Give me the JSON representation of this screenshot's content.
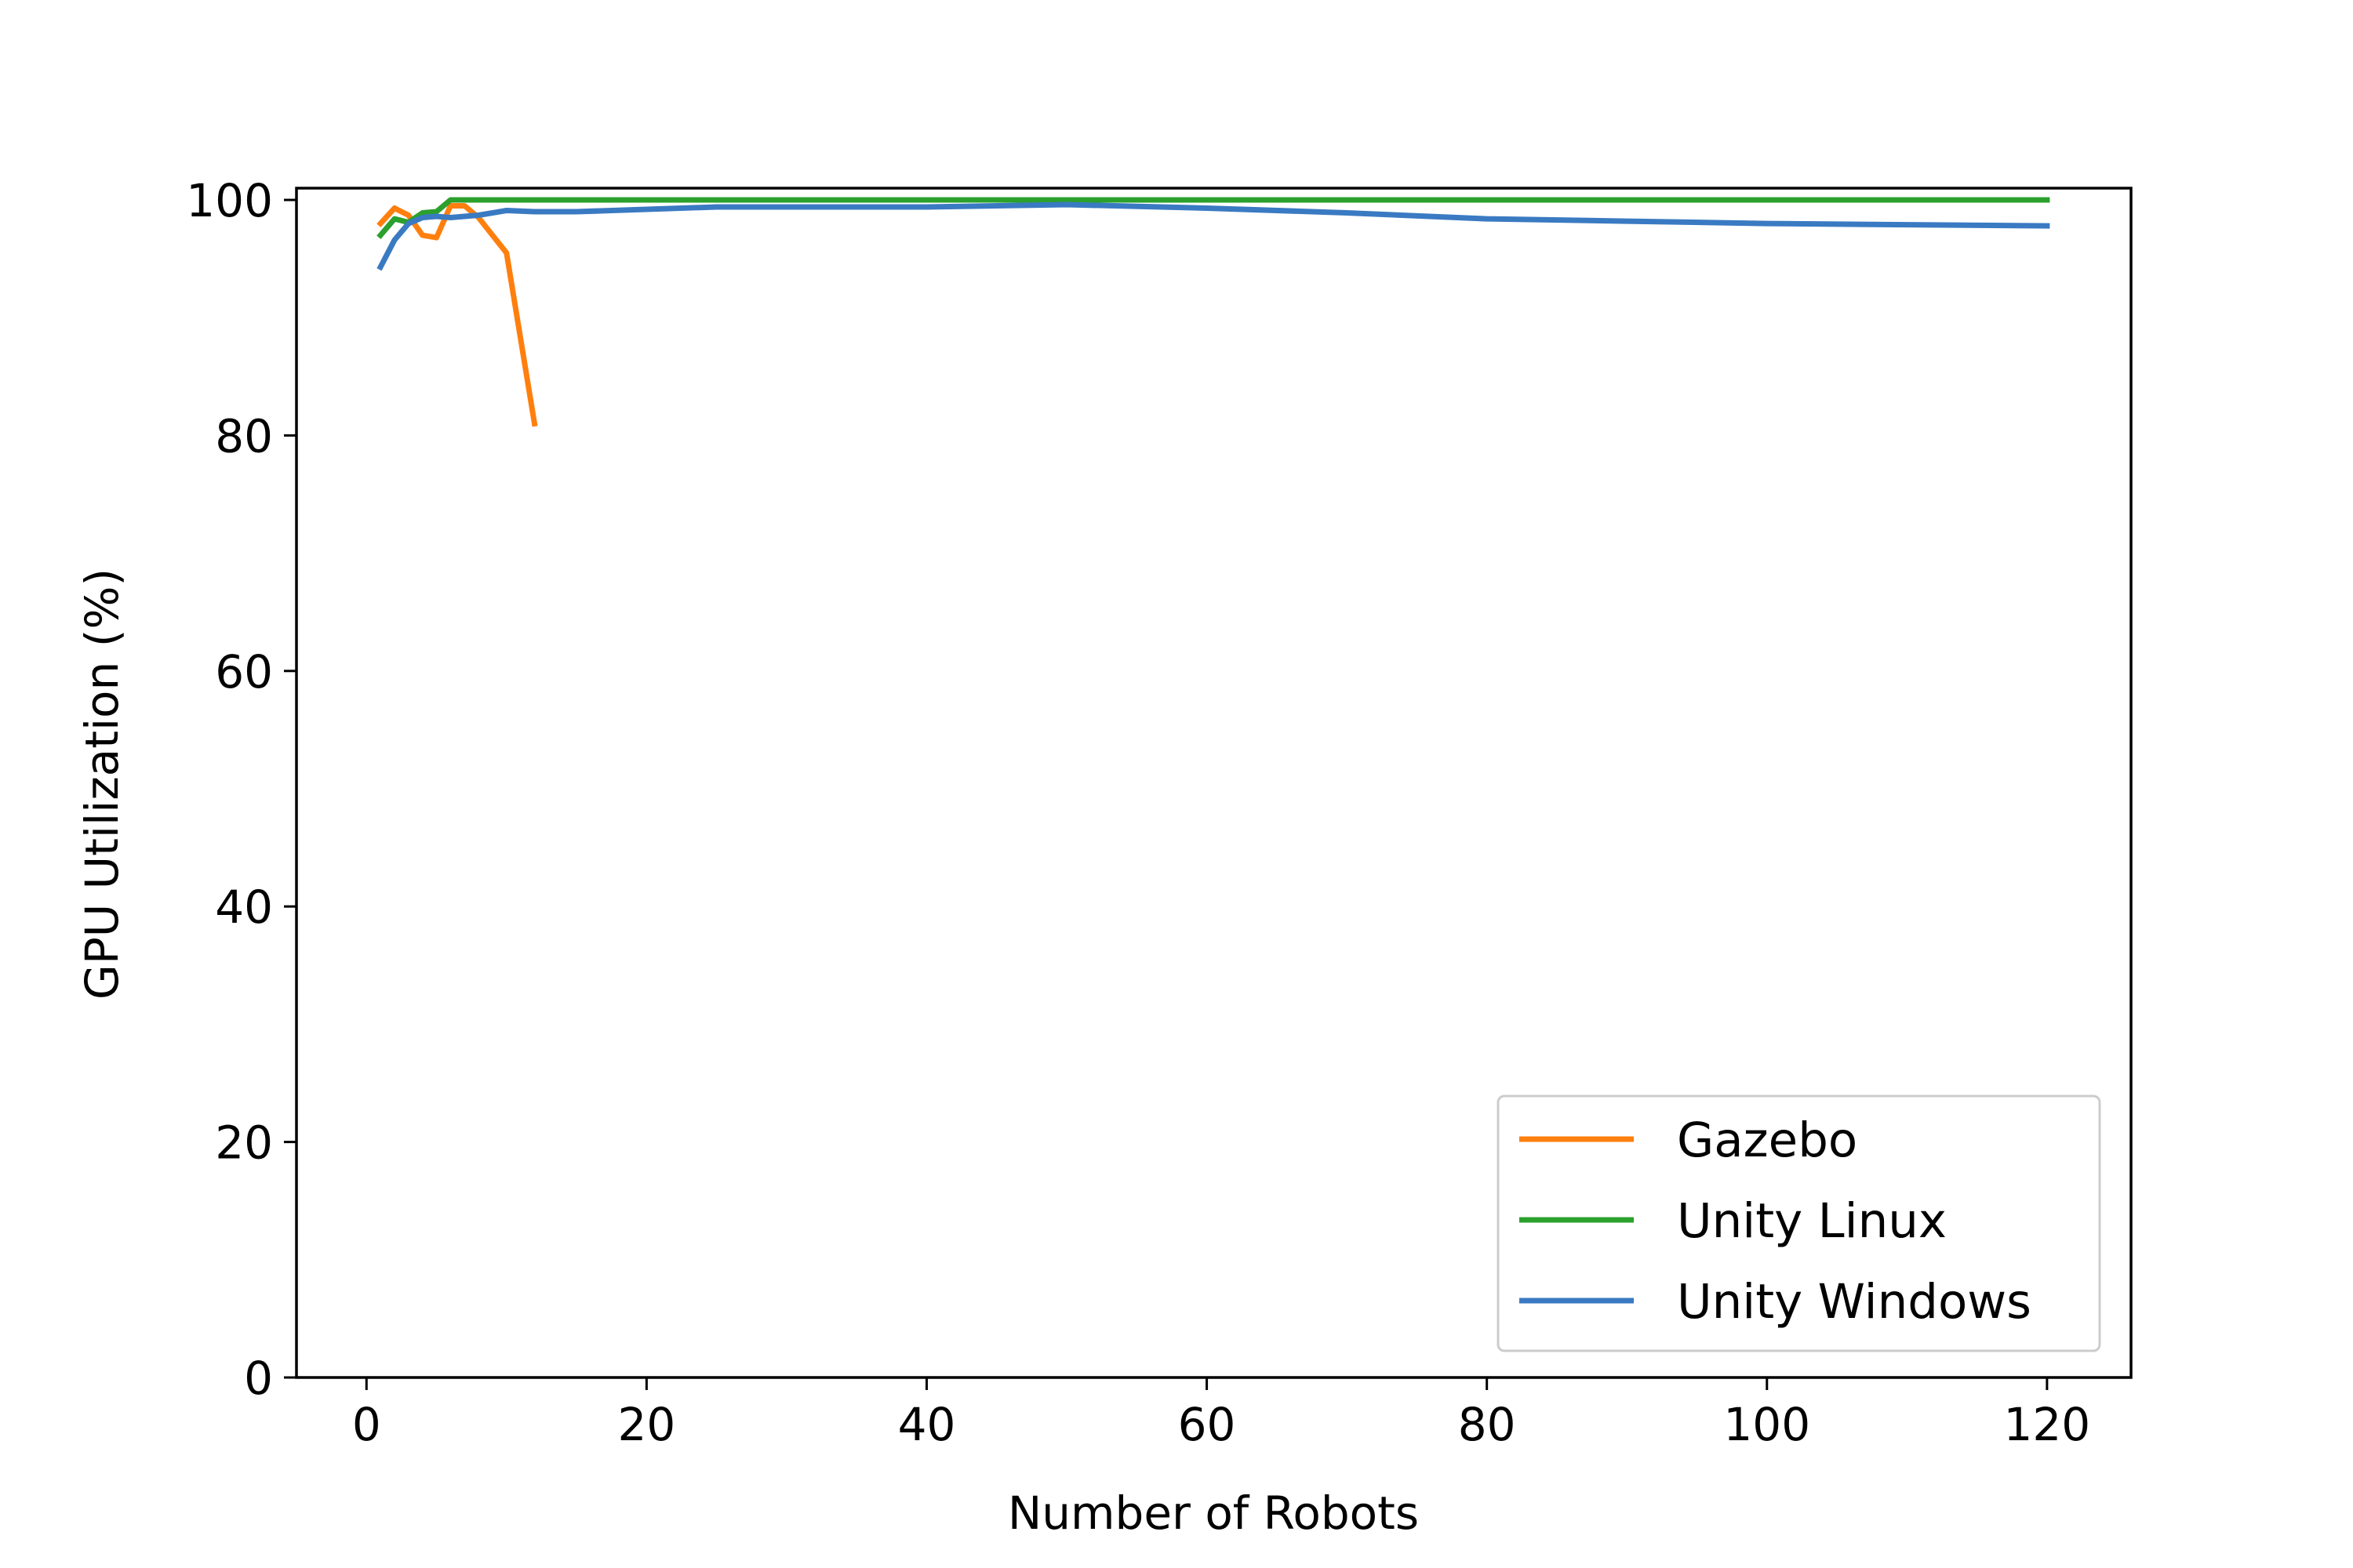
{
  "chart_data": {
    "type": "line",
    "title": "",
    "xlabel": "Number of Robots",
    "ylabel": "GPU Utilization (%)",
    "xlim": [
      -5,
      126
    ],
    "ylim": [
      0,
      101
    ],
    "xticks": [
      0,
      20,
      40,
      60,
      80,
      100,
      120
    ],
    "yticks": [
      0,
      20,
      40,
      60,
      80,
      100
    ],
    "grid": false,
    "legend_position": "lower-right",
    "series": [
      {
        "name": "Gazebo",
        "color": "#ff7f0e",
        "x": [
          1,
          2,
          3,
          4,
          5,
          6,
          7,
          8,
          10,
          12
        ],
        "y": [
          98.0,
          99.3,
          98.7,
          97.0,
          96.8,
          99.5,
          99.5,
          98.5,
          95.5,
          81.0
        ]
      },
      {
        "name": "Unity Linux",
        "color": "#2ca02c",
        "x": [
          1,
          2,
          3,
          4,
          5,
          6,
          10,
          15,
          20,
          30,
          40,
          50,
          60,
          80,
          100,
          120
        ],
        "y": [
          97.0,
          98.4,
          98.1,
          98.9,
          99.0,
          100.0,
          100.0,
          100.0,
          100.0,
          100.0,
          100.0,
          100.0,
          100.0,
          100.0,
          100.0,
          100.0
        ]
      },
      {
        "name": "Unity Windows",
        "color": "#3a7ac2",
        "x": [
          1,
          2,
          3,
          4,
          5,
          6,
          8,
          10,
          12,
          15,
          20,
          25,
          30,
          40,
          50,
          60,
          70,
          80,
          90,
          100,
          110,
          120
        ],
        "y": [
          94.3,
          96.6,
          98.0,
          98.5,
          98.6,
          98.5,
          98.7,
          99.1,
          99.0,
          99.0,
          99.2,
          99.4,
          99.4,
          99.4,
          99.6,
          99.3,
          98.9,
          98.4,
          98.2,
          98.0,
          97.9,
          97.8
        ]
      }
    ]
  }
}
